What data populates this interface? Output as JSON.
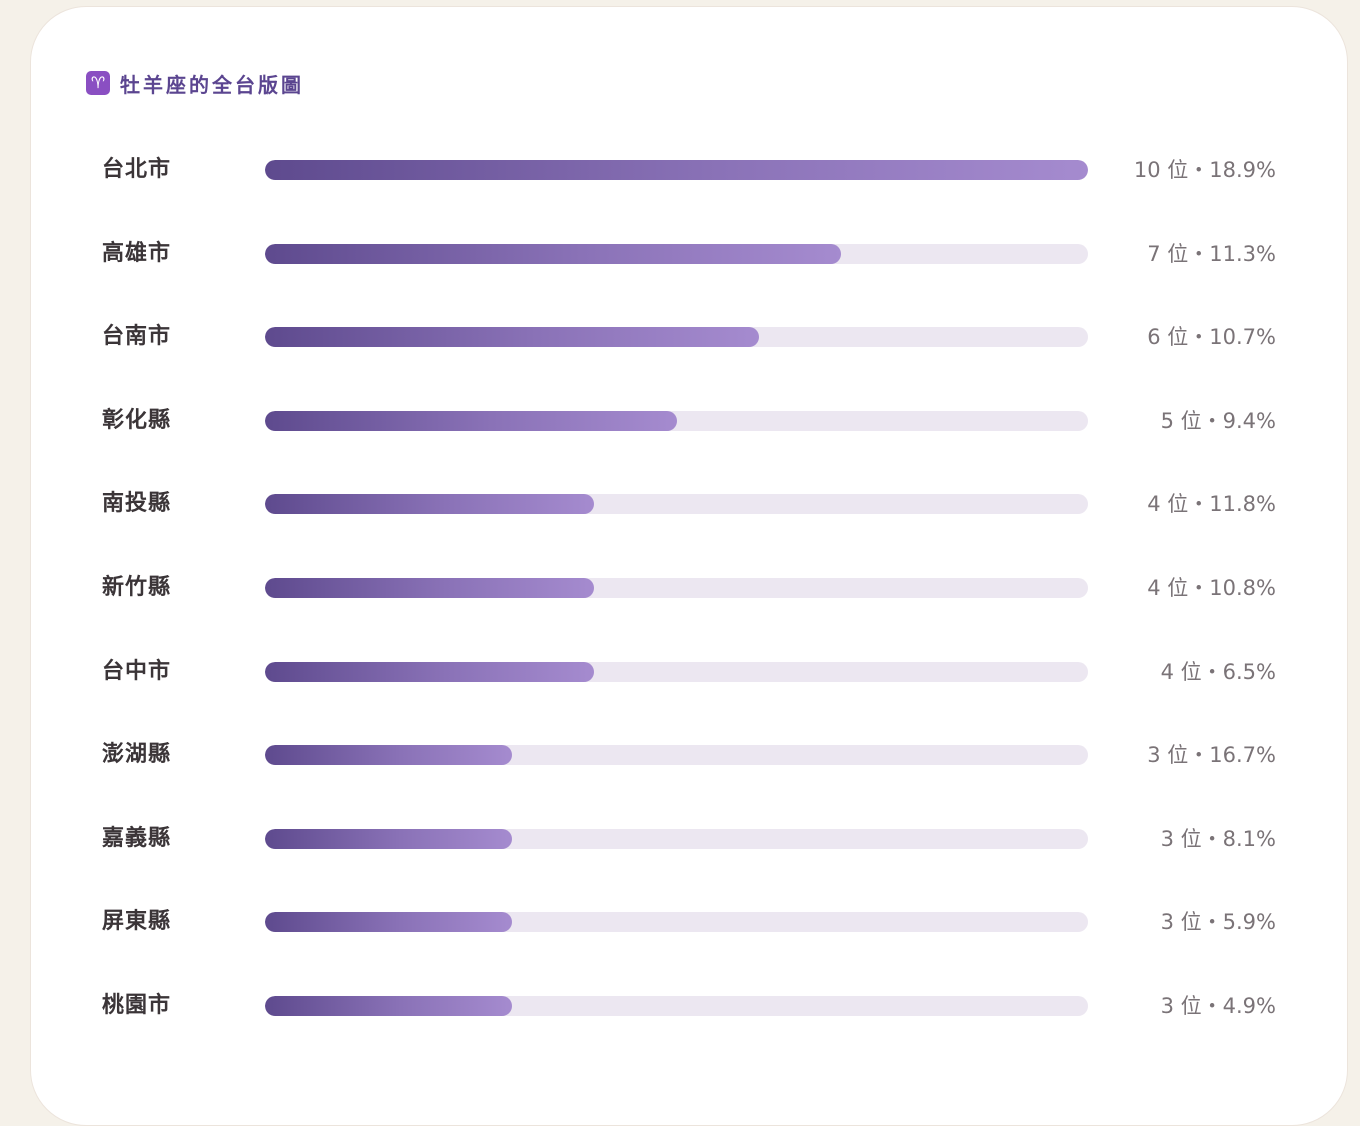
{
  "title": {
    "icon": "♈",
    "text": "牡羊座的全台版圖"
  },
  "colors": {
    "bar_start": "#5e4a8e",
    "bar_end": "#a58bcf",
    "track": "#ece7f1",
    "title": "#5b4590"
  },
  "chart_data": {
    "type": "bar",
    "orientation": "horizontal",
    "title": "牡羊座的全台版圖",
    "categories": [
      "台北市",
      "高雄市",
      "台南市",
      "彰化縣",
      "南投縣",
      "新竹縣",
      "台中市",
      "澎湖縣",
      "嘉義縣",
      "屏東縣",
      "桃園市"
    ],
    "values": [
      10,
      7,
      6,
      5,
      4,
      4,
      4,
      3,
      3,
      3,
      3
    ],
    "percents": [
      "18.9%",
      "11.3%",
      "10.7%",
      "9.4%",
      "11.8%",
      "10.8%",
      "6.5%",
      "16.7%",
      "8.1%",
      "5.9%",
      "4.9%"
    ],
    "labels": [
      "10 位・18.9%",
      "7 位・11.3%",
      "6 位・10.7%",
      "5 位・9.4%",
      "4 位・11.8%",
      "4 位・10.8%",
      "4 位・6.5%",
      "3 位・16.7%",
      "3 位・8.1%",
      "3 位・5.9%",
      "3 位・4.9%"
    ],
    "xlim": [
      0,
      10
    ],
    "grid": false,
    "legend": "none"
  }
}
